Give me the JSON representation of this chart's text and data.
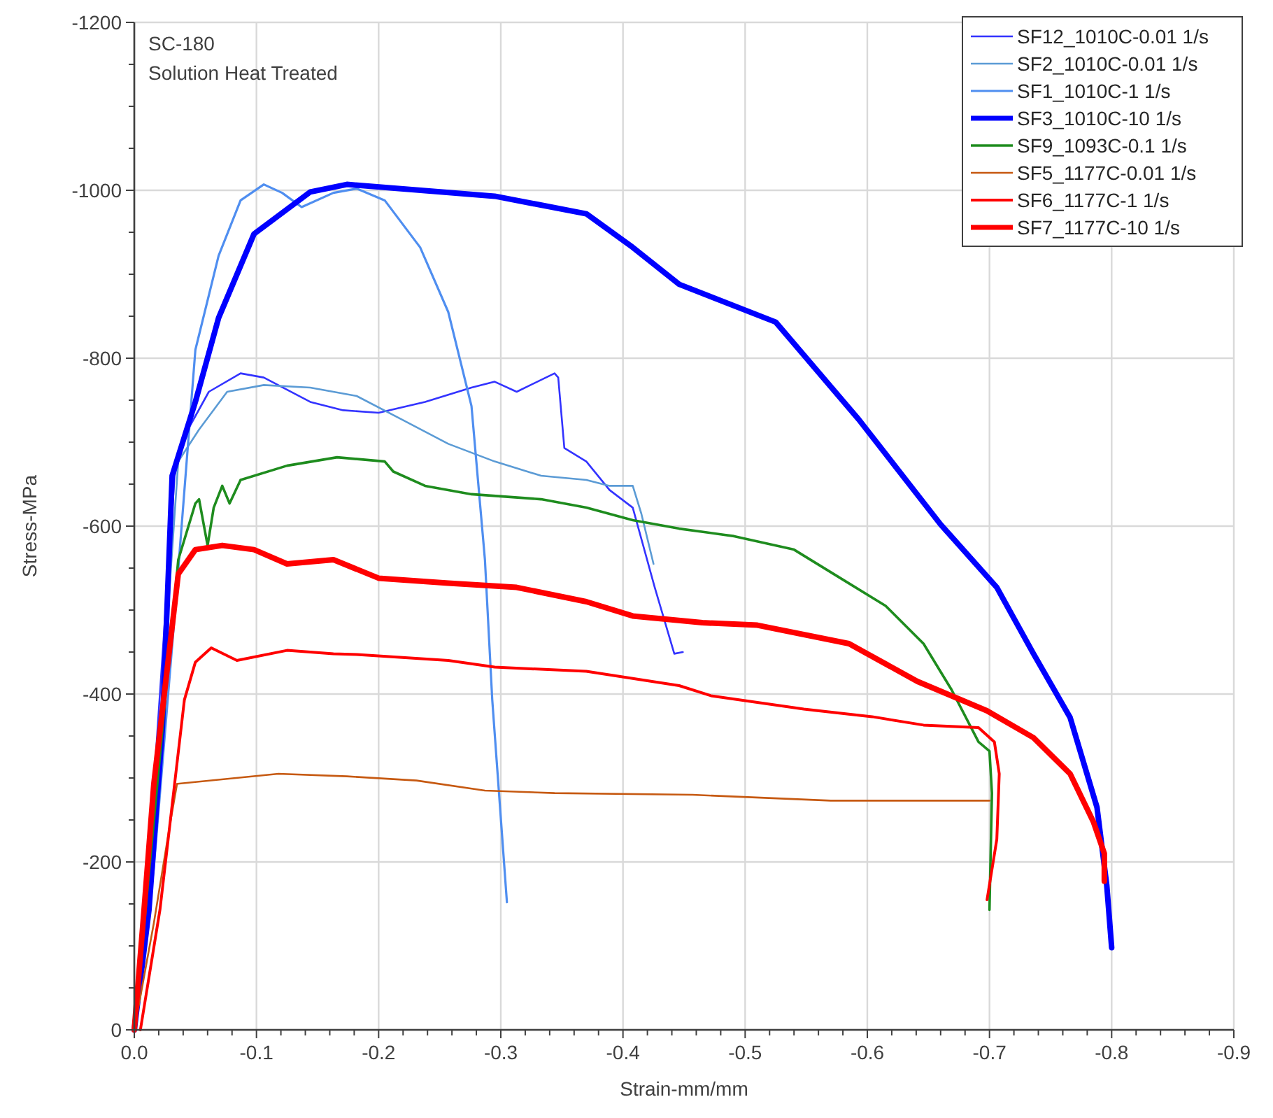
{
  "chart_data": {
    "type": "line",
    "xlabel": "Strain-mm/mm",
    "ylabel": "Stress-MPa",
    "annotations": [
      "SC-180",
      "Solution Heat Treated"
    ],
    "xlim": [
      0,
      -0.9
    ],
    "ylim": [
      0,
      -1200
    ],
    "xticks": [
      {
        "value": 0,
        "label": "0.0"
      },
      -0.1,
      -0.2,
      -0.3,
      -0.4,
      -0.5,
      -0.6,
      -0.7,
      -0.8,
      -0.9
    ],
    "yticks": [
      0,
      -200,
      -400,
      -600,
      -800,
      -1000,
      -1200
    ],
    "grid": true,
    "legend": "top right",
    "marker": "none",
    "line_style": "solid",
    "series": [
      {
        "name": "SF12_1010C-0.01 1/s",
        "color": "#3333ff",
        "x": [
          0,
          -0.01,
          -0.016,
          -0.033,
          -0.042,
          -0.061,
          -0.087,
          -0.106,
          -0.144,
          -0.171,
          -0.2,
          -0.238,
          -0.276,
          -0.295,
          -0.313,
          -0.344,
          -0.347,
          -0.352,
          -0.37,
          -0.389,
          -0.408,
          -0.426,
          -0.442,
          -0.449
        ],
        "values": [
          0,
          -160,
          -293,
          -660,
          -710,
          -760,
          -782,
          -777,
          -748,
          -738,
          -735,
          -748,
          -765,
          -772,
          -760,
          -782,
          -777,
          -693,
          -677,
          -643,
          -622,
          -527,
          -448,
          -450
        ]
      },
      {
        "name": "SF2_1010C-0.01 1/s",
        "color": "#5b9bd5",
        "x": [
          0,
          -0.014,
          -0.021,
          -0.036,
          -0.053,
          -0.076,
          -0.106,
          -0.144,
          -0.182,
          -0.219,
          -0.257,
          -0.295,
          -0.333,
          -0.37,
          -0.389,
          -0.408,
          -0.415,
          -0.425
        ],
        "values": [
          0,
          -193,
          -360,
          -677,
          -715,
          -760,
          -768,
          -765,
          -755,
          -727,
          -698,
          -677,
          -660,
          -655,
          -648,
          -648,
          -615,
          -555
        ]
      },
      {
        "name": "SF1_1010C-1 1/s",
        "color": "#4f8ef0",
        "x": [
          0,
          -0.016,
          -0.033,
          -0.05,
          -0.069,
          -0.087,
          -0.106,
          -0.121,
          -0.137,
          -0.163,
          -0.182,
          -0.205,
          -0.234,
          -0.257,
          -0.276,
          -0.287,
          -0.293,
          -0.305
        ],
        "values": [
          0,
          -193,
          -493,
          -810,
          -922,
          -988,
          -1007,
          -997,
          -980,
          -997,
          -1002,
          -988,
          -932,
          -855,
          -743,
          -560,
          -393,
          -152
        ]
      },
      {
        "name": "SF3_1010C-10 1/s",
        "color": "#0000ff",
        "x": [
          0,
          -0.012,
          -0.023,
          -0.031,
          -0.05,
          -0.069,
          -0.098,
          -0.144,
          -0.174,
          -0.295,
          -0.37,
          -0.408,
          -0.446,
          -0.525,
          -0.593,
          -0.66,
          -0.706,
          -0.736,
          -0.766,
          -0.788,
          -0.796,
          -0.8
        ],
        "values": [
          0,
          -143,
          -360,
          -660,
          -748,
          -848,
          -948,
          -998,
          -1007,
          -993,
          -972,
          -932,
          -888,
          -843,
          -727,
          -602,
          -527,
          -448,
          -372,
          -265,
          -172,
          -98
        ]
      },
      {
        "name": "SF9_1093C-0.1 1/s",
        "color": "#1e8c1e",
        "x": [
          0,
          -0.036,
          -0.05,
          -0.053,
          -0.06,
          -0.065,
          -0.072,
          -0.078,
          -0.087,
          -0.125,
          -0.166,
          -0.205,
          -0.212,
          -0.238,
          -0.276,
          -0.333,
          -0.37,
          -0.408,
          -0.446,
          -0.491,
          -0.54,
          -0.578,
          -0.615,
          -0.646,
          -0.669,
          -0.691,
          -0.7,
          -0.702,
          -0.7
        ],
        "values": [
          0,
          -560,
          -627,
          -632,
          -577,
          -622,
          -648,
          -627,
          -655,
          -672,
          -682,
          -677,
          -665,
          -648,
          -638,
          -632,
          -622,
          -607,
          -597,
          -588,
          -572,
          -538,
          -505,
          -460,
          -405,
          -343,
          -332,
          -282,
          -143
        ]
      },
      {
        "name": "SF5_1177C-0.01 1/s",
        "color": "#c65911",
        "x": [
          0,
          -0.016,
          -0.029,
          -0.035,
          -0.118,
          -0.174,
          -0.231,
          -0.287,
          -0.344,
          -0.457,
          -0.57,
          -0.7
        ],
        "values": [
          0,
          -127,
          -243,
          -293,
          -305,
          -302,
          -297,
          -285,
          -282,
          -280,
          -273,
          -273
        ]
      },
      {
        "name": "SF6_1177C-1 1/s",
        "color": "#ff0000",
        "x": [
          -0.005,
          -0.021,
          -0.041,
          -0.05,
          -0.063,
          -0.084,
          -0.125,
          -0.163,
          -0.182,
          -0.257,
          -0.295,
          -0.37,
          -0.446,
          -0.472,
          -0.548,
          -0.604,
          -0.646,
          -0.691,
          -0.704,
          -0.708,
          -0.706,
          -0.698
        ],
        "values": [
          0,
          -143,
          -393,
          -438,
          -455,
          -440,
          -452,
          -448,
          -447,
          -440,
          -432,
          -427,
          -410,
          -398,
          -382,
          -373,
          -363,
          -360,
          -343,
          -305,
          -227,
          -155
        ]
      },
      {
        "name": "SF7_1177C-10 1/s",
        "color": "#ff0000",
        "x": [
          0,
          -0.008,
          -0.016,
          -0.036,
          -0.05,
          -0.072,
          -0.098,
          -0.125,
          -0.163,
          -0.2,
          -0.257,
          -0.313,
          -0.37,
          -0.408,
          -0.465,
          -0.51,
          -0.585,
          -0.6,
          -0.641,
          -0.698,
          -0.736,
          -0.766,
          -0.785,
          -0.794,
          -0.794
        ],
        "values": [
          0,
          -143,
          -293,
          -543,
          -572,
          -577,
          -572,
          -555,
          -560,
          -538,
          -532,
          -527,
          -510,
          -493,
          -485,
          -482,
          -460,
          -448,
          -415,
          -380,
          -348,
          -305,
          -248,
          -210,
          -177
        ]
      }
    ]
  }
}
